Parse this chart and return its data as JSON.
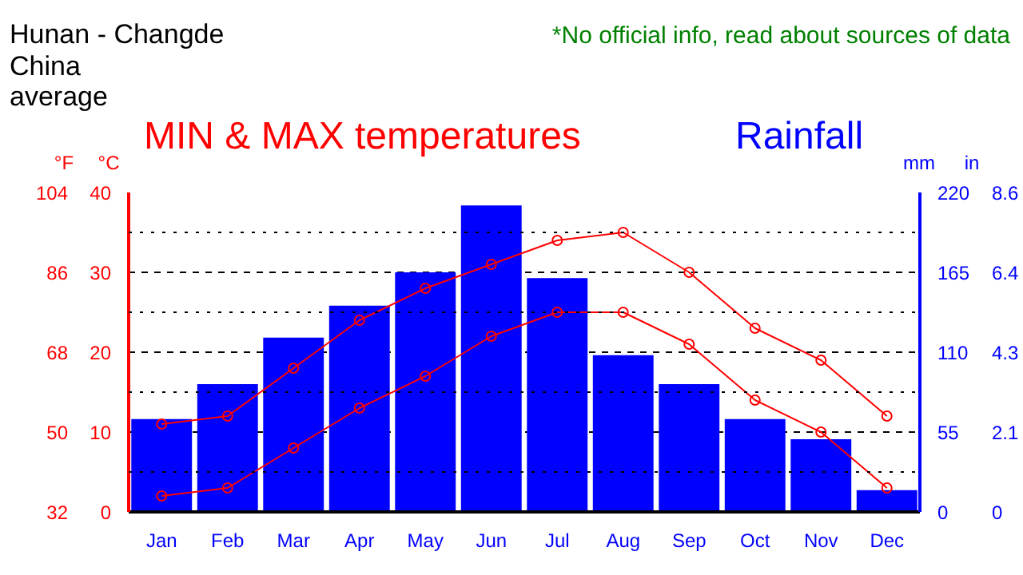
{
  "chart_data": {
    "type": "bar",
    "title": "Hunan - Changde\nChina\naverage",
    "annotations": [
      "*No official info, read about sources of data",
      "MIN & MAX temperatures",
      "Rainfall",
      "in",
      "0",
      "2.1",
      "4.3",
      "6.4",
      "8.6"
    ],
    "categories": [
      "Jan",
      "Feb",
      "Mar",
      "Apr",
      "May",
      "Jun",
      "Jul",
      "Aug",
      "Sep",
      "Oct",
      "Nov",
      "Dec"
    ],
    "series": [
      {
        "axis": "y2",
        "color": "#0000ff",
        "values": [
          64,
          88,
          120,
          142,
          165,
          211,
          161,
          108,
          88,
          64,
          50,
          15
        ]
      },
      {
        "type": "line",
        "axis": "y",
        "color": "#ff0000",
        "marker": "circle",
        "values": [
          11,
          12,
          18,
          24,
          28,
          31,
          34,
          35,
          30,
          23,
          19,
          12
        ]
      },
      {
        "type": "line",
        "axis": "y",
        "color": "#ff0000",
        "marker": "circle",
        "values": [
          2,
          3,
          8,
          13,
          17,
          22,
          25,
          25,
          21,
          14,
          10,
          3
        ]
      }
    ],
    "ylabel": "°C",
    "ylim": [
      0,
      40
    ],
    "yticks": [
      0,
      {
        "value": 5,
        "label": null
      },
      10,
      {
        "value": 15,
        "label": null
      },
      20,
      {
        "value": 25,
        "label": null
      },
      30,
      {
        "value": 35,
        "label": null
      },
      40
    ],
    "y2label": "mm",
    "y2lim": [
      0,
      220
    ],
    "y2ticks": [
      0,
      55,
      110,
      165,
      220
    ],
    "y3label": "°F",
    "y3lim": [
      32,
      104
    ],
    "y3ticks": [
      32,
      50,
      68,
      86,
      104
    ],
    "grid": "y"
  }
}
